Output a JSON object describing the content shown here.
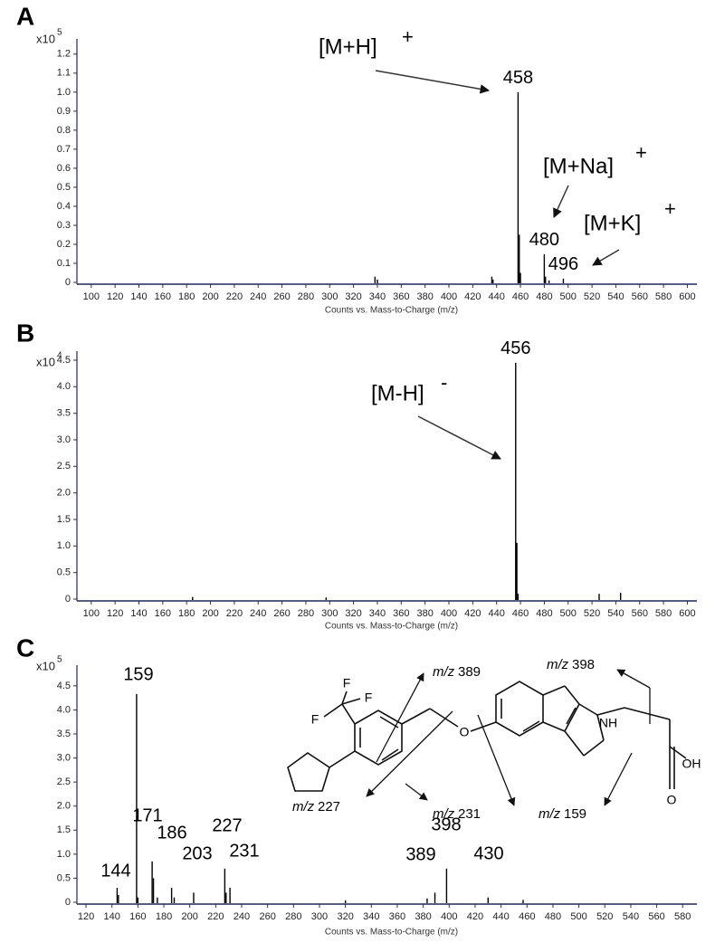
{
  "chart_data": [
    {
      "type": "stick",
      "panel_label": "A",
      "x_label": "Counts vs. Mass-to-Charge (m/z)",
      "y_scale": "x10",
      "y_scale_exponent": "5",
      "color": "#000000",
      "axis_color": "#1f2a5a",
      "x": [
        458,
        480,
        496
      ],
      "values": [
        1.0,
        0.148,
        0.02
      ],
      "minor_x": [
        338,
        340,
        436,
        437,
        459,
        460,
        481,
        484
      ],
      "minor_values": [
        0.03,
        0.015,
        0.03,
        0.015,
        0.25,
        0.05,
        0.03,
        0.01
      ],
      "xlim": [
        88,
        608
      ],
      "xticks": [
        100,
        120,
        140,
        160,
        180,
        200,
        220,
        240,
        260,
        280,
        300,
        320,
        340,
        360,
        380,
        400,
        420,
        440,
        460,
        480,
        500,
        520,
        540,
        560,
        580,
        600
      ],
      "ylim": [
        0,
        1.28
      ],
      "yticks": [
        0,
        0.1,
        0.2,
        0.3,
        0.4,
        0.5,
        0.6,
        0.7,
        0.8,
        0.9,
        {
          "value": 1,
          "label": "1.0"
        },
        1.1,
        1.2
      ],
      "annotations": [
        {
          "text": "[M+H]",
          "sup": "+"
        },
        {
          "text": "[M+Na]",
          "sup": "+"
        },
        {
          "text": "[M+K]",
          "sup": "+"
        }
      ]
    },
    {
      "type": "stick",
      "panel_label": "B",
      "x_label": "Counts vs. Mass-to-Charge (m/z)",
      "y_scale": "x10",
      "y_scale_exponent": "4",
      "color": "#000000",
      "axis_color": "#1f2a5a",
      "x": [
        456
      ],
      "values": [
        4.45
      ],
      "minor_x": [
        185,
        297,
        457,
        458,
        526,
        544
      ],
      "minor_values": [
        0.04,
        0.03,
        1.06,
        0.1,
        0.1,
        0.12
      ],
      "xlim": [
        88,
        608
      ],
      "xticks": [
        100,
        120,
        140,
        160,
        180,
        200,
        220,
        240,
        260,
        280,
        300,
        320,
        340,
        360,
        380,
        400,
        420,
        440,
        460,
        480,
        500,
        520,
        540,
        560,
        580,
        600
      ],
      "ylim": [
        0,
        4.67
      ],
      "yticks": [
        0,
        0.5,
        {
          "value": 1,
          "label": "1.0"
        },
        1.5,
        {
          "value": 2,
          "label": "2.0"
        },
        2.5,
        {
          "value": 3,
          "label": "3.0"
        },
        3.5,
        {
          "value": 4,
          "label": "4.0"
        },
        4.5
      ],
      "annotations": [
        {
          "text": "[M-H]",
          "sup": "-"
        }
      ]
    },
    {
      "type": "stick",
      "panel_label": "C",
      "x_label": "Counts vs. Mass-to-Charge (m/z)",
      "y_scale": "x10",
      "y_scale_exponent": "5",
      "color": "#000000",
      "axis_color": "#1f2a5a",
      "x": [
        144,
        159,
        171,
        186,
        203,
        227,
        231,
        389,
        398,
        430
      ],
      "values": [
        0.3,
        4.33,
        0.85,
        0.3,
        0.2,
        0.7,
        0.3,
        0.2,
        0.7,
        0.1
      ],
      "minor_x": [
        145,
        160,
        172,
        175,
        188,
        228,
        320,
        383,
        457
      ],
      "minor_values": [
        0.15,
        0.1,
        0.5,
        0.1,
        0.1,
        0.2,
        0.04,
        0.08,
        0.05
      ],
      "xlim": [
        113,
        591
      ],
      "xticks": [
        120,
        140,
        160,
        180,
        200,
        220,
        240,
        260,
        280,
        300,
        320,
        340,
        360,
        380,
        400,
        420,
        440,
        460,
        480,
        500,
        520,
        540,
        560,
        580
      ],
      "ylim": [
        0,
        4.93
      ],
      "yticks": [
        0,
        0.5,
        {
          "value": 1,
          "label": "1.0"
        },
        1.5,
        {
          "value": 2,
          "label": "2.0"
        },
        2.5,
        {
          "value": 3,
          "label": "3.0"
        },
        3.5,
        {
          "value": 4,
          "label": "4.0"
        },
        4.5
      ],
      "fragments": [
        {
          "label": "m/z",
          "mz": 389
        },
        {
          "label": "m/z",
          "mz": 398
        },
        {
          "label": "m/z",
          "mz": 227
        },
        {
          "label": "m/z",
          "mz": 231
        },
        {
          "label": "m/z",
          "mz": 159
        }
      ],
      "atom_labels": [
        "F",
        "F",
        "F",
        "NH",
        "O",
        "OH",
        "O"
      ]
    }
  ]
}
